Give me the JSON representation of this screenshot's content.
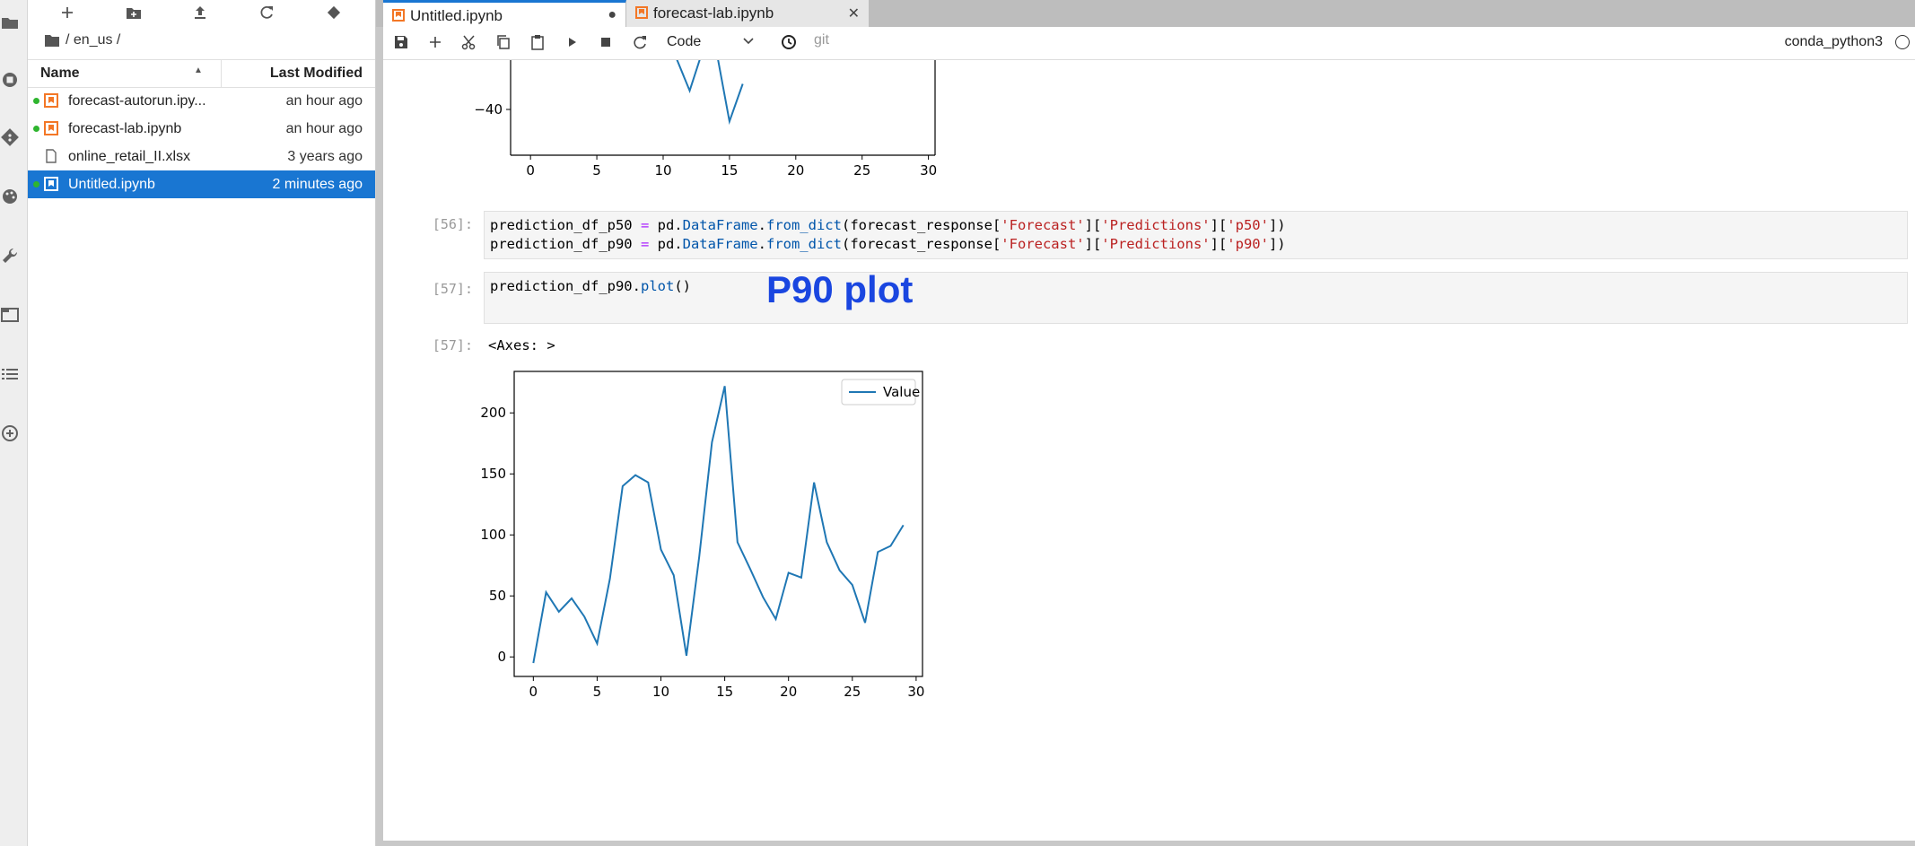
{
  "sidebar": {
    "breadcrumb": "/ en_us /",
    "columns": {
      "name": "Name",
      "modified": "Last Modified"
    },
    "files": [
      {
        "name": "forecast-autorun.ipy...",
        "modified": "an hour ago",
        "type": "notebook",
        "running": true,
        "selected": false
      },
      {
        "name": "forecast-lab.ipynb",
        "modified": "an hour ago",
        "type": "notebook",
        "running": true,
        "selected": false
      },
      {
        "name": "online_retail_II.xlsx",
        "modified": "3 years ago",
        "type": "file",
        "running": false,
        "selected": false
      },
      {
        "name": "Untitled.ipynb",
        "modified": "2 minutes ago",
        "type": "notebook",
        "running": true,
        "selected": true
      }
    ]
  },
  "tabs": [
    {
      "label": "Untitled.ipynb",
      "state": "●",
      "active": true
    },
    {
      "label": "forecast-lab.ipynb",
      "state": "✕",
      "active": false
    }
  ],
  "toolbar": {
    "cell_type": "Code",
    "git_label": "git",
    "kernel": "conda_python3"
  },
  "cells": {
    "c56": {
      "prompt": "[56]:",
      "line1": {
        "var": "prediction_df_p50",
        "eq": " = ",
        "mod": "pd.",
        "cls": "DataFrame",
        "dot": ".",
        "fn": "from_dict",
        "args_pre": "(forecast_response[",
        "k1": "'Forecast'",
        "b1": "][",
        "k2": "'Predictions'",
        "b2": "][",
        "k3": "'p50'",
        "end": "])"
      },
      "line2": {
        "var": "prediction_df_p90",
        "eq": " = ",
        "mod": "pd.",
        "cls": "DataFrame",
        "dot": ".",
        "fn": "from_dict",
        "args_pre": "(forecast_response[",
        "k1": "'Forecast'",
        "b1": "][",
        "k2": "'Predictions'",
        "b2": "][",
        "k3": "'p90'",
        "end": "])"
      }
    },
    "c57": {
      "prompt": "[57]:",
      "code_var": "prediction_df_p90.",
      "code_fn": "plot",
      "code_end": "()",
      "annotation": "P90 plot",
      "out_prompt": "[57]:",
      "out_text": "<Axes: >"
    }
  },
  "colors": {
    "line": "#1f77b4",
    "selected": "#1976d2",
    "annotation": "#1a46e0"
  },
  "top_chart": {
    "type": "line",
    "x_ticks": [
      "0",
      "5",
      "10",
      "15",
      "20",
      "25",
      "30"
    ],
    "y_tick": "−40",
    "x_points": [
      11,
      12,
      13,
      14,
      15,
      16
    ],
    "y_points": [
      -10,
      -29,
      -5,
      -5,
      -47,
      -25
    ]
  },
  "chart_data": {
    "type": "line",
    "legend": "Value",
    "legend_position": "top-right",
    "x": [
      0,
      1,
      2,
      3,
      4,
      5,
      6,
      7,
      8,
      9,
      10,
      11,
      12,
      13,
      14,
      15,
      16,
      17,
      18,
      19,
      20,
      21,
      22,
      23,
      24,
      25,
      26,
      27,
      28,
      29
    ],
    "values": [
      -5,
      53,
      37,
      48,
      33,
      11,
      64,
      140,
      149,
      143,
      88,
      67,
      1,
      82,
      176,
      222,
      94,
      72,
      49,
      31,
      69,
      65,
      143,
      94,
      71,
      59,
      28,
      86,
      91,
      108
    ],
    "x_ticks": [
      "0",
      "5",
      "10",
      "15",
      "20",
      "25",
      "30"
    ],
    "y_ticks": [
      "0",
      "50",
      "100",
      "150",
      "200"
    ],
    "xlim": [
      -1.5,
      30.5
    ],
    "ylim": [
      -16,
      234
    ],
    "grid": false
  }
}
